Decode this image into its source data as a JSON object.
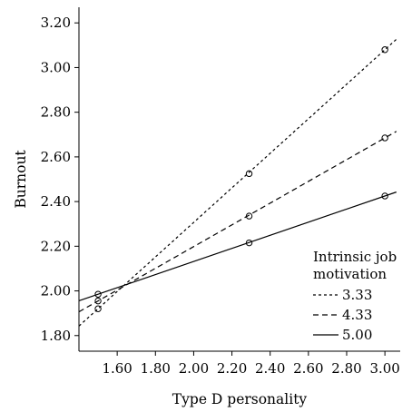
{
  "chart_data": {
    "type": "line",
    "title": "",
    "xlabel": "Type D personality",
    "ylabel": "Burnout",
    "xlim": [
      1.4,
      3.08
    ],
    "ylim": [
      1.73,
      3.27
    ],
    "x_ticks": [
      1.6,
      1.8,
      2.0,
      2.2,
      2.4,
      2.6,
      2.8,
      3.0
    ],
    "x_tick_labels": [
      "1.60",
      "1.80",
      "2.00",
      "2.20",
      "2.40",
      "2.60",
      "2.80",
      "3.00"
    ],
    "y_ticks": [
      1.8,
      2.0,
      2.2,
      2.4,
      2.6,
      2.8,
      3.0,
      3.2
    ],
    "y_tick_labels": [
      "1.80",
      "2.00",
      "2.20",
      "2.40",
      "2.60",
      "2.80",
      "3.00",
      "3.20"
    ],
    "grid": false,
    "legend": {
      "title_lines": [
        "Intrinsic job",
        "motivation"
      ],
      "placement": "bottom-right"
    },
    "series": [
      {
        "name": "3.33",
        "dash": "3,3",
        "points": [
          [
            1.5,
            1.92
          ],
          [
            2.29,
            2.525
          ],
          [
            3.0,
            3.08
          ]
        ],
        "line_x": [
          1.4,
          3.06
        ]
      },
      {
        "name": "4.33",
        "dash": "6,4",
        "points": [
          [
            1.5,
            1.955
          ],
          [
            2.29,
            2.335
          ],
          [
            3.0,
            2.685
          ]
        ],
        "line_x": [
          1.4,
          3.06
        ]
      },
      {
        "name": "5.00",
        "dash": "",
        "points": [
          [
            1.5,
            1.985
          ],
          [
            2.29,
            2.215
          ],
          [
            3.0,
            2.425
          ]
        ],
        "line_x": [
          1.4,
          3.06
        ]
      }
    ]
  }
}
